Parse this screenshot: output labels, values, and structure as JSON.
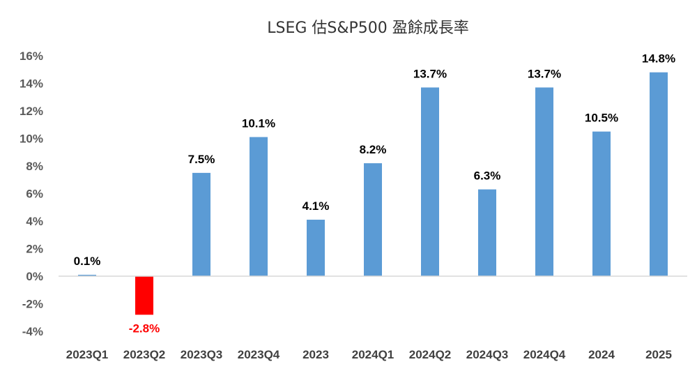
{
  "chart_data": {
    "type": "bar",
    "title": "LSEG 估S&P500 盈餘成長率",
    "categories": [
      "2023Q1",
      "2023Q2",
      "2023Q3",
      "2023Q4",
      "2023",
      "2024Q1",
      "2024Q2",
      "2024Q3",
      "2024Q4",
      "2024",
      "2025"
    ],
    "values": [
      0.1,
      -2.8,
      7.5,
      10.1,
      4.1,
      8.2,
      13.7,
      6.3,
      13.7,
      10.5,
      14.8
    ],
    "data_labels": [
      "0.1%",
      "-2.8%",
      "7.5%",
      "10.1%",
      "4.1%",
      "8.2%",
      "13.7%",
      "6.3%",
      "13.7%",
      "10.5%",
      "14.8%"
    ],
    "ylim": [
      -4,
      16
    ],
    "yticks": [
      16,
      14,
      12,
      10,
      8,
      6,
      4,
      2,
      0,
      -2,
      -4
    ],
    "ytick_labels": [
      "16%",
      "14%",
      "12%",
      "10%",
      "8%",
      "6%",
      "4%",
      "2%",
      "0%",
      "-2%",
      "-4%"
    ],
    "xlabel": "",
    "ylabel": "",
    "grid": false,
    "legend": "none",
    "colors": {
      "positive": "#5b9bd5",
      "negative": "#ff0000",
      "positive_label": "#000000",
      "negative_label": "#ff0000",
      "axis": "#d9d9d9"
    }
  }
}
